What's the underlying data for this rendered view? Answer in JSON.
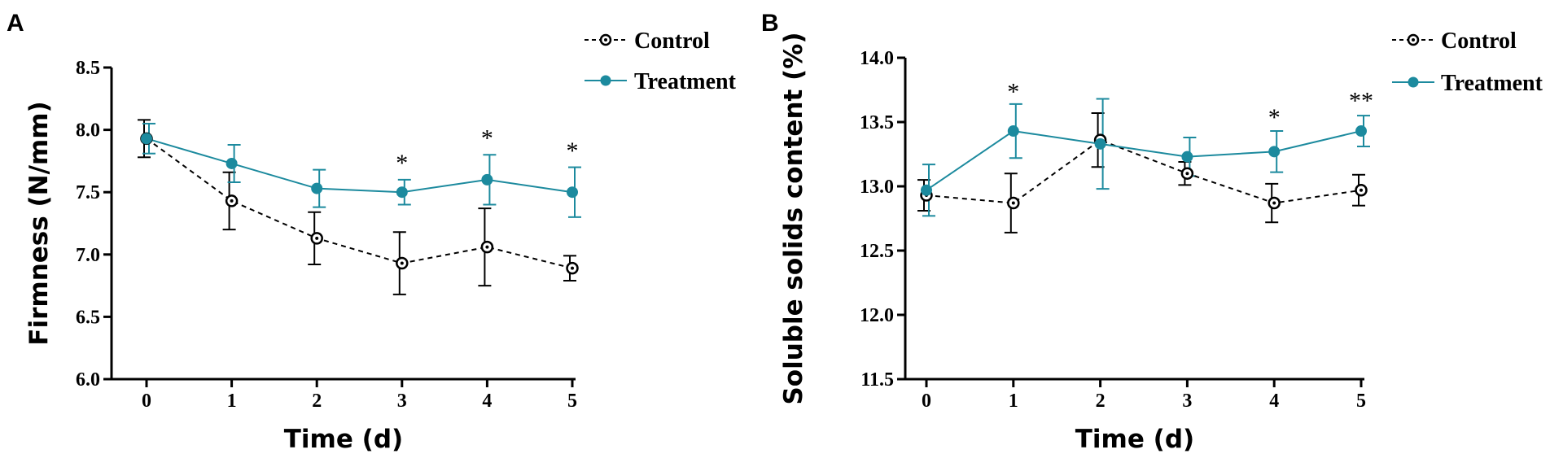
{
  "chart_data": [
    {
      "panel_label": "A",
      "type": "line",
      "xlabel": "Time (d)",
      "ylabel": "Firmness (N/mm)",
      "categories": [
        "0",
        "1",
        "2",
        "3",
        "4",
        "5"
      ],
      "x": [
        0,
        1,
        2,
        3,
        4,
        5
      ],
      "xlim": [
        -0.2,
        5.1
      ],
      "ylim": [
        6.0,
        8.5
      ],
      "yticks": [
        "6.0",
        "6.5",
        "7.0",
        "7.5",
        "8.0",
        "8.5"
      ],
      "legend_position": "top-right",
      "series": [
        {
          "name": "Control",
          "style": "dashed-open-circle",
          "color": "#000000",
          "values": [
            7.93,
            7.43,
            7.13,
            6.93,
            7.06,
            6.89
          ],
          "errors": [
            0.15,
            0.23,
            0.21,
            0.25,
            0.31,
            0.1
          ]
        },
        {
          "name": "Treatment",
          "style": "solid-filled-circle",
          "color": "#1c8a9e",
          "values": [
            7.93,
            7.73,
            7.53,
            7.5,
            7.6,
            7.5
          ],
          "errors": [
            0.12,
            0.15,
            0.15,
            0.1,
            0.2,
            0.2
          ]
        }
      ],
      "significance": [
        {
          "x": 3,
          "label": "*",
          "y": 7.8
        },
        {
          "x": 4,
          "label": "*",
          "y": 8.0
        },
        {
          "x": 5,
          "label": "*",
          "y": 7.9
        }
      ]
    },
    {
      "panel_label": "B",
      "type": "line",
      "xlabel": "Time (d)",
      "ylabel": "Soluble solids content (%)",
      "categories": [
        "0",
        "1",
        "2",
        "3",
        "4",
        "5"
      ],
      "x": [
        0,
        1,
        2,
        3,
        4,
        5
      ],
      "xlim": [
        -0.2,
        5.1
      ],
      "ylim": [
        11.5,
        14.0
      ],
      "yticks": [
        "11.5",
        "12.0",
        "12.5",
        "13.0",
        "13.5",
        "14.0"
      ],
      "legend_position": "top-right",
      "series": [
        {
          "name": "Control",
          "style": "dashed-open-circle",
          "color": "#000000",
          "values": [
            12.93,
            12.87,
            13.36,
            13.1,
            12.87,
            12.97
          ],
          "errors": [
            0.12,
            0.23,
            0.21,
            0.09,
            0.15,
            0.12
          ]
        },
        {
          "name": "Treatment",
          "style": "solid-filled-circle",
          "color": "#1c8a9e",
          "values": [
            12.97,
            13.43,
            13.33,
            13.23,
            13.27,
            13.43
          ],
          "errors": [
            0.2,
            0.21,
            0.35,
            0.15,
            0.16,
            0.12
          ]
        }
      ],
      "significance": [
        {
          "x": 1,
          "label": "*",
          "y": 13.8
        },
        {
          "x": 4,
          "label": "*",
          "y": 13.6
        },
        {
          "x": 5,
          "label": "**",
          "y": 13.73
        }
      ]
    }
  ]
}
